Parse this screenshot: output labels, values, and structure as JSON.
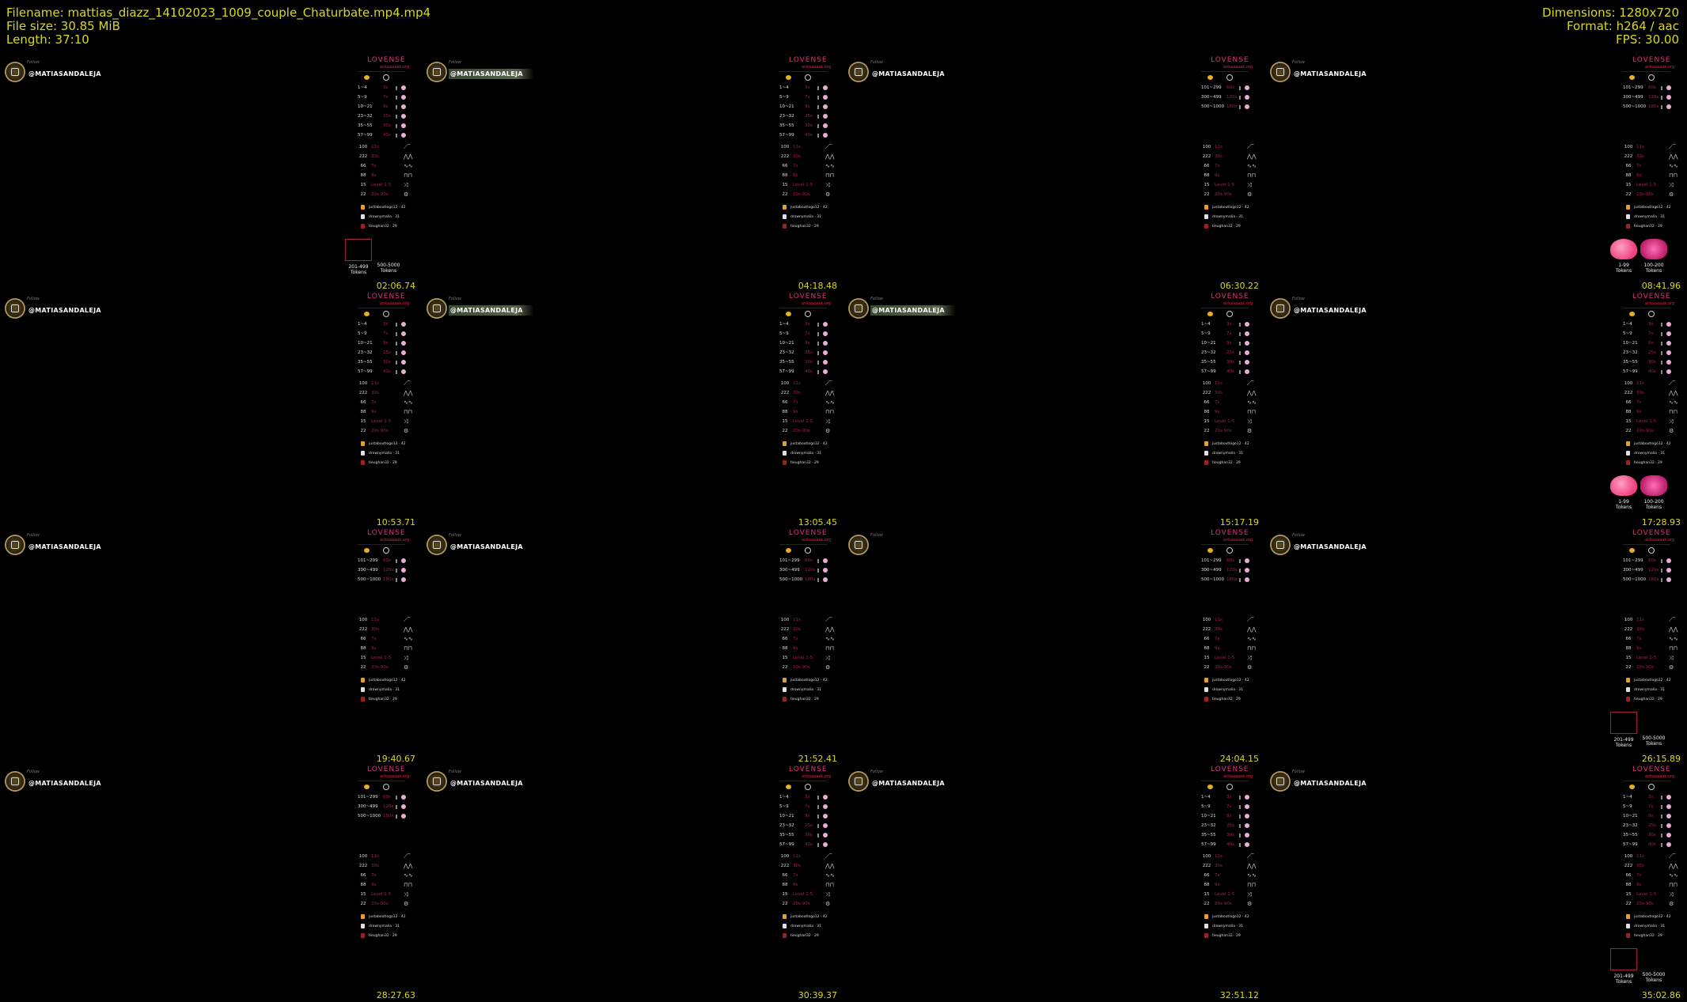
{
  "header": {
    "filename": "Filename: mattias_diazz_14102023_1009_couple_Chaturbate.mp4.mp4",
    "file_size": "File size: 30.85 MiB",
    "length": "Length: 37:10",
    "dimensions": "Dimensions: 1280x720",
    "format": "Format: h264 / aac",
    "fps": "FPS: 30.00"
  },
  "colors": {
    "text_yellow": "#d8d820",
    "lovense_pink": "#e0307a",
    "background": "#000000"
  },
  "overlay": {
    "username": "@MATIASANDALEJA",
    "follow": "Follow",
    "lovense_logo": "LOVENSE",
    "lovense_sub": "ankaaaaak.org",
    "tiers_low": [
      {
        "range": "1~4",
        "time": "3s"
      },
      {
        "range": "5~9",
        "time": "7s"
      },
      {
        "range": "10~21",
        "time": "9s"
      },
      {
        "range": "23~32",
        "time": "25s"
      },
      {
        "range": "35~55",
        "time": "30s"
      },
      {
        "range": "57~99",
        "time": "40s"
      }
    ],
    "tiers_high": [
      {
        "range": "101~299",
        "time": "60s"
      },
      {
        "range": "300~499",
        "time": "120s"
      },
      {
        "range": "500~1000",
        "time": "180s"
      }
    ],
    "patterns": [
      {
        "amount": "100",
        "time": "11s",
        "icon": "ramp-wave-icon"
      },
      {
        "amount": "222",
        "time": "30s",
        "icon": "sawtooth-wave-icon"
      },
      {
        "amount": "66",
        "time": "7s",
        "icon": "sine-wave-icon"
      },
      {
        "amount": "88",
        "time": "9s",
        "icon": "square-wave-icon"
      },
      {
        "amount": "15",
        "time": "Level 1-5",
        "icon": "shuffle-icon"
      },
      {
        "amount": "22",
        "time": "20s-90s",
        "icon": "random-icon"
      }
    ],
    "leaderboard": [
      {
        "name": "justaboutlogo12",
        "score": "42",
        "trophy": "#e8a020"
      },
      {
        "name": "drownymalia",
        "score": "31",
        "trophy": "#e0e0e0"
      },
      {
        "name": "tieughan32",
        "score": "29",
        "trophy": "#a02020"
      }
    ],
    "gifts_a": [
      "201-499 Tokens",
      "500-5000 Tokens"
    ],
    "gifts_b": [
      "1-99 Tokens",
      "100-200 Tokens"
    ]
  },
  "frames": [
    {
      "timestamp": "02:06.74",
      "tiers": "low",
      "gifts": "a",
      "bar": false
    },
    {
      "timestamp": "04:18.48",
      "tiers": "low",
      "gifts": "",
      "bar": true
    },
    {
      "timestamp": "06:30.22",
      "tiers": "high",
      "gifts": "",
      "bar": false
    },
    {
      "timestamp": "08:41.96",
      "tiers": "high",
      "gifts": "b",
      "bar": false
    },
    {
      "timestamp": "10:53.71",
      "tiers": "low",
      "gifts": "",
      "bar": false
    },
    {
      "timestamp": "13:05.45",
      "tiers": "low",
      "gifts": "",
      "bar": true
    },
    {
      "timestamp": "15:17.19",
      "tiers": "low",
      "gifts": "",
      "bar": true
    },
    {
      "timestamp": "17:28.93",
      "tiers": "low",
      "gifts": "b",
      "bar": false
    },
    {
      "timestamp": "19:40.67",
      "tiers": "high",
      "gifts": "",
      "bar": false
    },
    {
      "timestamp": "21:52.41",
      "tiers": "high",
      "gifts": "",
      "bar": false
    },
    {
      "timestamp": "24:04.15",
      "tiers": "high",
      "gifts": "",
      "bar": false,
      "hidden_name": true
    },
    {
      "timestamp": "26:15.89",
      "tiers": "high",
      "gifts": "a",
      "bar": false
    },
    {
      "timestamp": "28:27.63",
      "tiers": "high",
      "gifts": "",
      "bar": false
    },
    {
      "timestamp": "30:39.37",
      "tiers": "low",
      "gifts": "",
      "bar": false
    },
    {
      "timestamp": "32:51.12",
      "tiers": "low",
      "gifts": "",
      "bar": false
    },
    {
      "timestamp": "35:02.86",
      "tiers": "low",
      "gifts": "a",
      "bar": false
    }
  ]
}
